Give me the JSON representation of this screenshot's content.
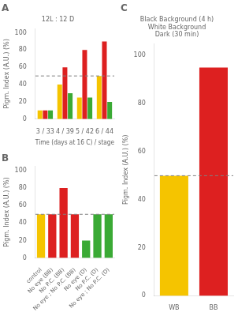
{
  "chart_data": [
    {
      "type": "bar",
      "title": "A",
      "annotations": [
        "12L : 12 D"
      ],
      "categories": [
        "3 / 33",
        "4 / 39",
        "5 / 42",
        "6 / 44"
      ],
      "series": [
        {
          "color": "#f5c400",
          "values": [
            10,
            40,
            25,
            50
          ]
        },
        {
          "color": "#dd2020",
          "values": [
            10,
            60,
            80,
            90
          ]
        },
        {
          "color": "#3aaa35",
          "values": [
            10,
            30,
            25,
            20
          ]
        }
      ],
      "xlabel": "Time (days at 16 C) / stage",
      "ylabel": "Pigm. Index (A.U.) (%)",
      "ylim": [
        0,
        105
      ],
      "yticks": [
        0,
        20,
        40,
        60,
        80,
        100
      ],
      "reference_y": 50,
      "grid": false
    },
    {
      "type": "bar",
      "title": "B",
      "categories": [
        "control",
        "No eye (BB)",
        "No P.C. (BB)",
        "No eye ; No P.C. (BB)",
        "No eye (D)",
        "No P.C. (D)",
        "No eye ; No P.C. (D)"
      ],
      "values": [
        50,
        50,
        80,
        50,
        20,
        50,
        50
      ],
      "colors": [
        "#f5c400",
        "#dd2020",
        "#dd2020",
        "#dd2020",
        "#3aaa35",
        "#3aaa35",
        "#3aaa35"
      ],
      "ylabel": "Pigm. Index (A.U.) (%)",
      "ylim": [
        0,
        105
      ],
      "yticks": [
        0,
        20,
        40,
        60,
        80,
        100
      ],
      "reference_y": 50,
      "grid": false
    },
    {
      "type": "bar",
      "title": "C",
      "annotations": [
        "Black Background (4 h)",
        "White Background",
        "Dark (30 min)"
      ],
      "categories": [
        "WB",
        "BB"
      ],
      "values": [
        50,
        95
      ],
      "colors": [
        "#f5c400",
        "#dd2020"
      ],
      "ylabel": "Pigm. Index (A.U.) (%)",
      "ylim": [
        0,
        105
      ],
      "yticks": [
        0,
        20,
        40,
        60,
        80,
        100
      ],
      "reference_y": 50,
      "grid": false
    }
  ]
}
